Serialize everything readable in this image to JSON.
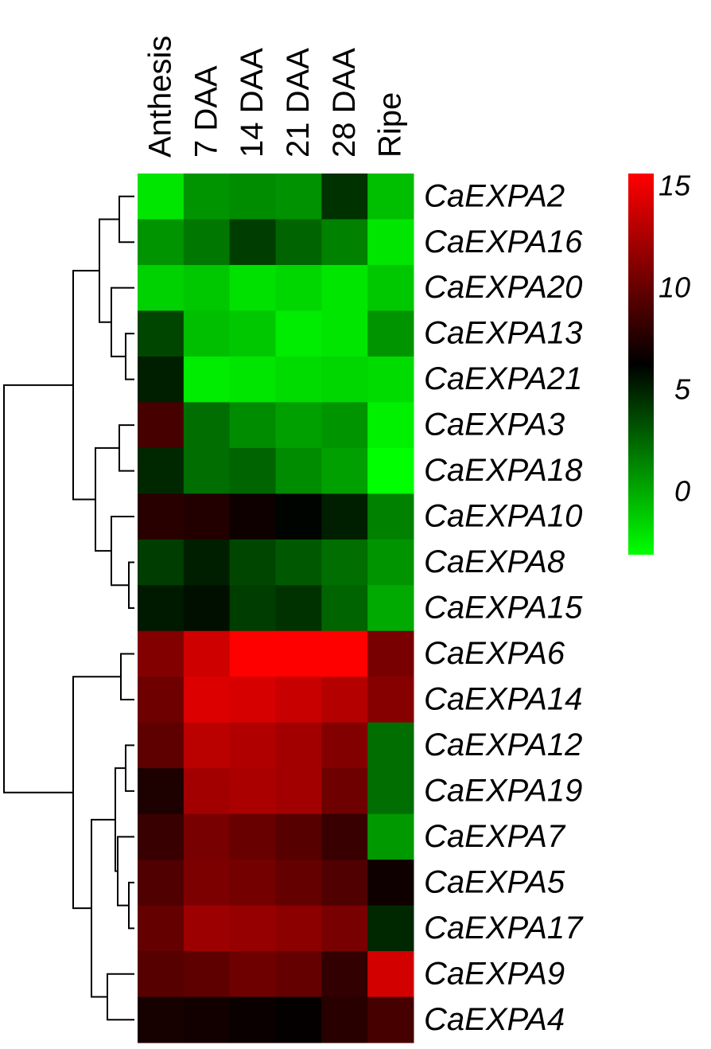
{
  "chart_data": {
    "type": "heatmap",
    "columns": [
      "Anthesis",
      "7 DAA",
      "14 DAA",
      "21 DAA",
      "28 DAA",
      "Ripe"
    ],
    "rows": [
      "CaEXPA2",
      "CaEXPA16",
      "CaEXPA20",
      "CaEXPA13",
      "CaEXPA21",
      "CaEXPA3",
      "CaEXPA18",
      "CaEXPA10",
      "CaEXPA8",
      "CaEXPA15",
      "CaEXPA6",
      "CaEXPA14",
      "CaEXPA12",
      "CaEXPA19",
      "CaEXPA7",
      "CaEXPA5",
      "CaEXPA17",
      "CaEXPA9",
      "CaEXPA4"
    ],
    "values": [
      [
        -2.1,
        0.9,
        1.2,
        1.0,
        4.5,
        -0.6
      ],
      [
        0.9,
        2.0,
        4.1,
        2.7,
        1.6,
        -2.1
      ],
      [
        -1.3,
        -1.0,
        -1.9,
        -1.5,
        -2.1,
        -1.0
      ],
      [
        3.8,
        -0.6,
        -1.0,
        -2.3,
        -2.1,
        0.9
      ],
      [
        5.2,
        -2.3,
        -2.1,
        -1.7,
        -1.5,
        -1.7
      ],
      [
        8.9,
        2.3,
        1.2,
        0.5,
        0.9,
        -2.5
      ],
      [
        4.9,
        2.3,
        2.7,
        1.2,
        0.5,
        -3.0
      ],
      [
        7.8,
        7.6,
        6.9,
        6.2,
        5.2,
        1.6
      ],
      [
        4.1,
        5.2,
        3.8,
        3.1,
        2.3,
        0.9
      ],
      [
        5.4,
        5.8,
        4.1,
        4.5,
        2.7,
        0.1
      ],
      [
        11.1,
        13.9,
        15.7,
        15.7,
        15.7,
        10.8
      ],
      [
        10.4,
        14.4,
        14.2,
        13.7,
        13.0,
        11.3
      ],
      [
        9.8,
        13.2,
        12.8,
        12.3,
        11.1,
        2.3
      ],
      [
        7.4,
        12.3,
        12.6,
        12.3,
        10.4,
        2.3
      ],
      [
        8.4,
        10.8,
        10.2,
        9.5,
        8.4,
        0.7
      ],
      [
        9.3,
        10.9,
        10.6,
        10.0,
        9.3,
        6.9
      ],
      [
        10.0,
        12.1,
        11.9,
        11.5,
        10.8,
        4.9
      ],
      [
        9.5,
        9.8,
        10.4,
        10.0,
        8.2,
        14.1
      ],
      [
        7.2,
        7.0,
        6.7,
        6.5,
        7.8,
        8.9
      ]
    ],
    "colorscale": [
      "#00ff00",
      "#000000",
      "#ff0000"
    ],
    "zlim": [
      -3,
      15.7
    ],
    "zticks": [
      0,
      5,
      10,
      15
    ]
  }
}
